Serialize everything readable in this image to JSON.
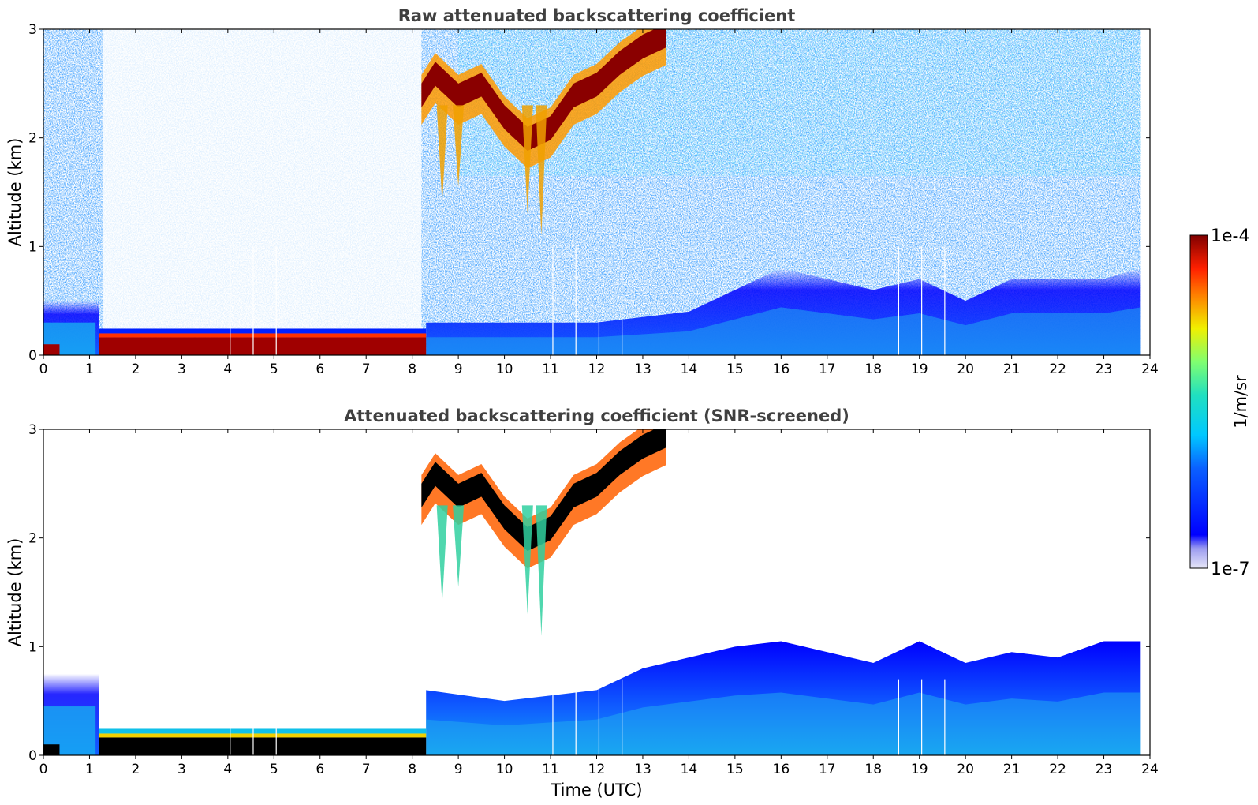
{
  "figure": {
    "xlabel": "Time (UTC)",
    "colorbar": {
      "label": "1/m/sr",
      "tick_max": "1e-4",
      "tick_min": "1e-7",
      "range": [
        1e-07,
        0.0001
      ],
      "scale": "log",
      "colormap": "jet-with-light-lavender-low-end"
    }
  },
  "chart_data": [
    {
      "type": "heatmap",
      "title": "Raw attenuated backscattering coefficient",
      "xlabel": "",
      "ylabel": "Altitude (km)",
      "xlim": [
        0,
        24
      ],
      "ylim": [
        0,
        3
      ],
      "xticks": [
        0,
        1,
        2,
        3,
        4,
        5,
        6,
        7,
        8,
        9,
        10,
        11,
        12,
        13,
        14,
        15,
        16,
        17,
        18,
        19,
        20,
        21,
        22,
        23,
        24
      ],
      "yticks": [
        0,
        1,
        2,
        3
      ],
      "features": {
        "surface_layer": {
          "x_range": [
            1.2,
            8.3
          ],
          "altitude_km": [
            0.0,
            0.2
          ],
          "level": "1e-4"
        },
        "early_boundary_layer": {
          "x_range": [
            0.0,
            1.2
          ],
          "altitude_km": [
            0.0,
            0.5
          ]
        },
        "elevated_cloud": {
          "x": [
            8.2,
            8.5,
            9.0,
            9.5,
            10.0,
            10.5,
            11.0,
            11.5,
            12.0,
            12.5,
            13.0,
            13.5
          ],
          "altitude_km": [
            2.4,
            2.6,
            2.4,
            2.5,
            2.2,
            2.0,
            2.1,
            2.4,
            2.5,
            2.7,
            2.85,
            2.95
          ],
          "level": "1e-4"
        },
        "daytime_boundary_layer": {
          "x": [
            8.3,
            10,
            12,
            14,
            15,
            16,
            17,
            18,
            19,
            20,
            21,
            22,
            23,
            23.8
          ],
          "top_km": [
            0.3,
            0.3,
            0.3,
            0.4,
            0.6,
            0.8,
            0.7,
            0.6,
            0.7,
            0.5,
            0.7,
            0.7,
            0.7,
            0.8
          ]
        },
        "noise_gap": {
          "x_range": [
            1.3,
            8.2
          ],
          "altitude_km": [
            0.2,
            3.0
          ]
        }
      }
    },
    {
      "type": "heatmap",
      "title": "Attenuated backscattering coefficient (SNR-screened)",
      "xlabel": "Time (UTC)",
      "ylabel": "Altitude (km)",
      "xlim": [
        0,
        24
      ],
      "ylim": [
        0,
        3
      ],
      "xticks": [
        0,
        1,
        2,
        3,
        4,
        5,
        6,
        7,
        8,
        9,
        10,
        11,
        12,
        13,
        14,
        15,
        16,
        17,
        18,
        19,
        20,
        21,
        22,
        23,
        24
      ],
      "yticks": [
        0,
        1,
        2,
        3
      ],
      "features": {
        "surface_layer": {
          "x_range": [
            1.2,
            8.3
          ],
          "altitude_km": [
            0.0,
            0.2
          ],
          "level": "saturated"
        },
        "early_boundary_layer": {
          "x_range": [
            0.0,
            1.2
          ],
          "altitude_km": [
            0.0,
            0.75
          ]
        },
        "elevated_cloud": {
          "x": [
            8.2,
            8.5,
            9.0,
            9.5,
            10.0,
            10.5,
            11.0,
            11.5,
            12.0,
            12.5,
            13.0,
            13.5
          ],
          "altitude_km": [
            2.4,
            2.6,
            2.4,
            2.5,
            2.2,
            2.0,
            2.1,
            2.4,
            2.5,
            2.7,
            2.85,
            2.95
          ],
          "level": "saturated"
        },
        "daytime_boundary_layer": {
          "x": [
            8.3,
            10,
            12,
            13,
            14,
            15,
            16,
            17,
            18,
            19,
            20,
            21,
            22,
            23,
            23.8
          ],
          "top_km": [
            0.6,
            0.5,
            0.6,
            0.8,
            0.9,
            1.0,
            1.05,
            0.95,
            0.85,
            1.05,
            0.85,
            0.95,
            0.9,
            1.05,
            1.05
          ]
        }
      }
    }
  ]
}
